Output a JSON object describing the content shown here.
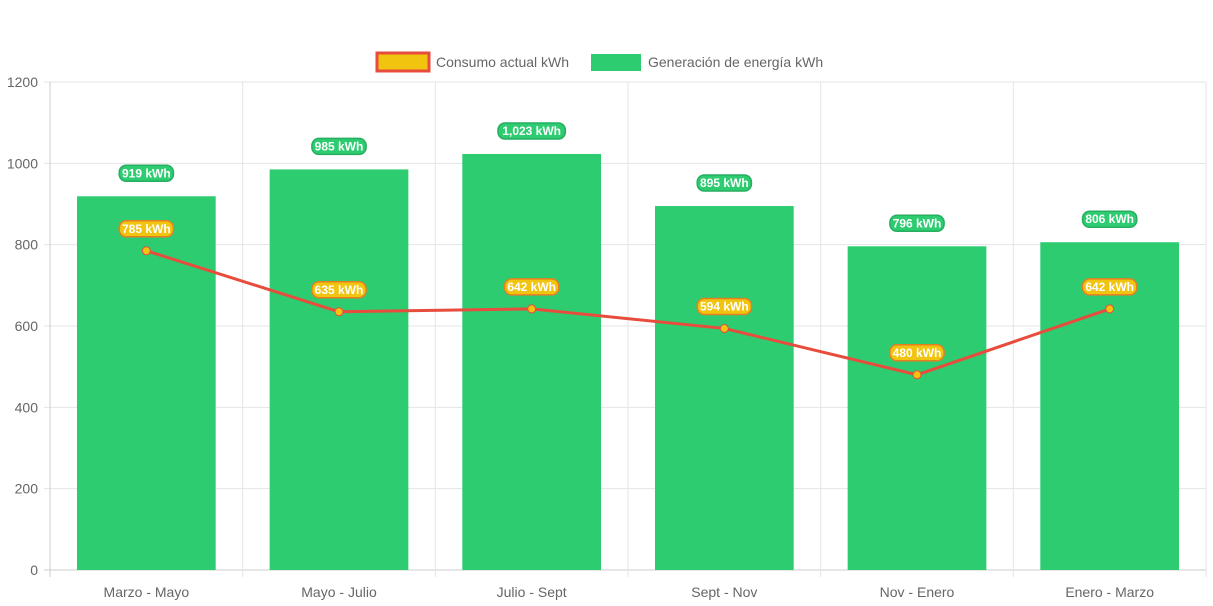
{
  "chart_data": {
    "type": "bar",
    "categories": [
      "Marzo - Mayo",
      "Mayo - Julio",
      "Julio - Sept",
      "Sept - Nov",
      "Nov - Enero",
      "Enero - Marzo"
    ],
    "series": [
      {
        "name": "Consumo actual kWh",
        "type": "line",
        "values": [
          785,
          635,
          642,
          594,
          480,
          642
        ],
        "labels": [
          "785 kWh",
          "635 kWh",
          "642 kWh",
          "594 kWh",
          "480 kWh",
          "642 kWh"
        ],
        "color": "#e74c3c",
        "fill": "#f1c40f"
      },
      {
        "name": "Generación de energía kWh",
        "type": "bar",
        "values": [
          919,
          985,
          1023,
          895,
          796,
          806
        ],
        "labels": [
          "919 kWh",
          "985 kWh",
          "1,023 kWh",
          "895 kWh",
          "796 kWh",
          "806 kWh"
        ],
        "color": "#2ecc71"
      }
    ],
    "ylim": [
      0,
      1200
    ],
    "yticks": [
      "0",
      "200",
      "400",
      "600",
      "800",
      "1000",
      "1200"
    ],
    "grid": true,
    "legend": "top-center",
    "title": "",
    "xlabel": "",
    "ylabel": ""
  }
}
